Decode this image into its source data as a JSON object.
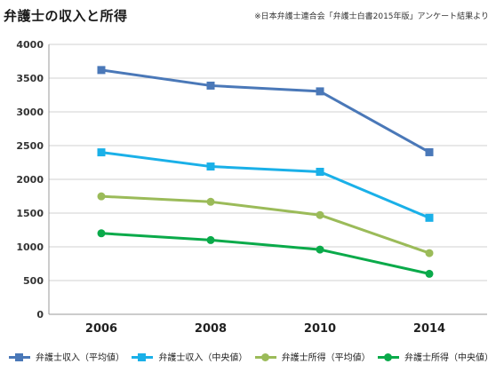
{
  "header": {
    "title": "弁護士の収入と所得",
    "source": "※日本弁護士連合会「弁護士白書2015年版」アンケート結果より"
  },
  "chart_data": {
    "type": "line",
    "title": "弁護士の収入と所得",
    "xlabel": "",
    "ylabel": "",
    "categories": [
      "2006",
      "2008",
      "2010",
      "2014"
    ],
    "ylim": [
      0,
      4000
    ],
    "yticks": [
      0,
      500,
      1000,
      1500,
      2000,
      2500,
      3000,
      3500,
      4000
    ],
    "grid": "horizontal",
    "legend_position": "bottom",
    "series": [
      {
        "name": "弁護士収入（平均値）",
        "values": [
          3620,
          3389,
          3304,
          2402
        ],
        "color": "#4a78b8",
        "marker": "square"
      },
      {
        "name": "弁護士収入（中央値）",
        "values": [
          2400,
          2190,
          2112,
          1430
        ],
        "color": "#1ab0e8",
        "marker": "square"
      },
      {
        "name": "弁護士所得（平均値）",
        "values": [
          1748,
          1667,
          1471,
          907
        ],
        "color": "#9bbb59",
        "marker": "circle"
      },
      {
        "name": "弁護士所得（中央値）",
        "values": [
          1200,
          1100,
          959,
          600
        ],
        "color": "#0aaa4a",
        "marker": "circle"
      }
    ]
  }
}
